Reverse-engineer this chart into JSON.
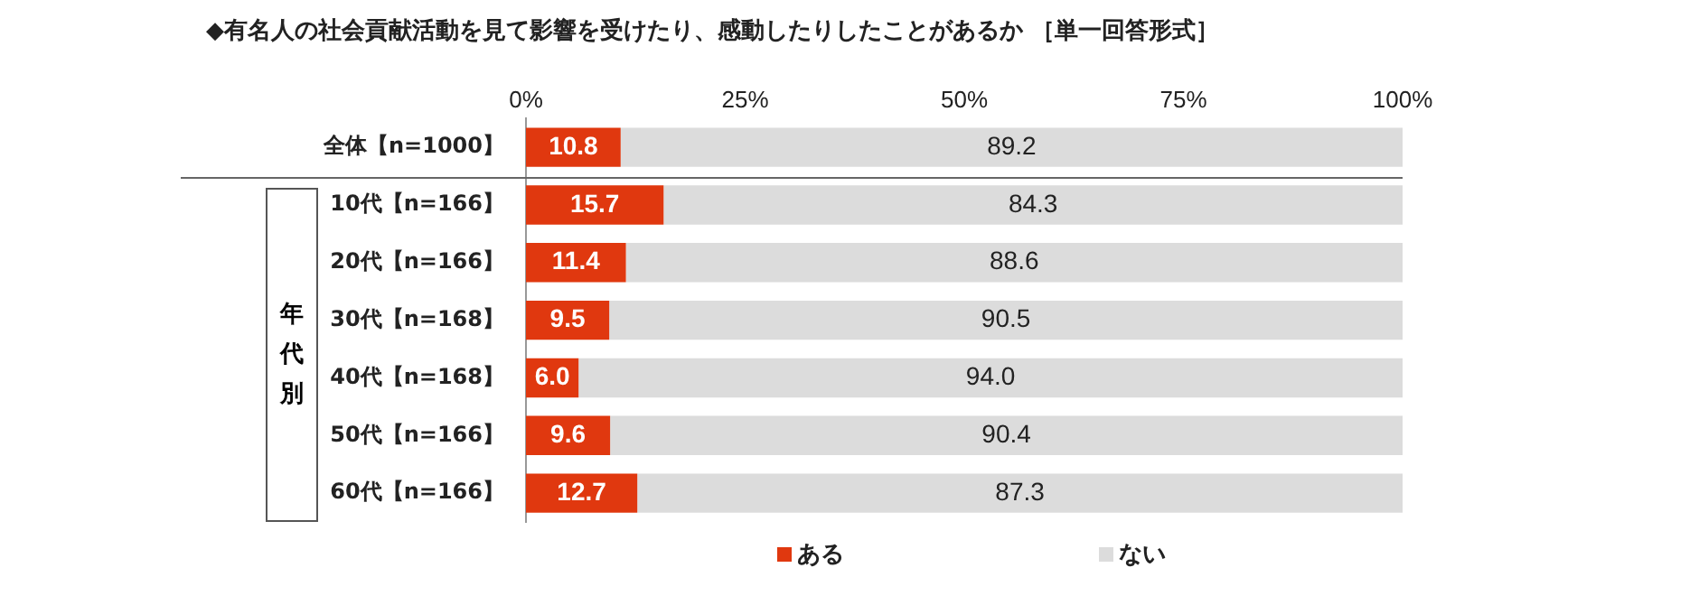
{
  "chart_data": {
    "type": "bar",
    "orientation": "horizontal",
    "stacked": true,
    "title": "◆有名人の社会貢献活動を見て影響を受けたり、感動したりしたことがあるか ［単一回答形式］",
    "categories": [
      "全体【n=1000】",
      "10代【n=166】",
      "20代【n=166】",
      "30代【n=168】",
      "40代【n=168】",
      "50代【n=166】",
      "60代【n=166】"
    ],
    "series": [
      {
        "name": "ある",
        "color": "#e0380f",
        "values": [
          10.8,
          15.7,
          11.4,
          9.5,
          6.0,
          9.6,
          12.7
        ],
        "value_labels": [
          "10.8",
          "15.7",
          "11.4",
          "9.5",
          "6.0",
          "9.6",
          "12.7"
        ]
      },
      {
        "name": "ない",
        "color": "#dcdcdc",
        "values": [
          89.2,
          84.3,
          88.6,
          90.5,
          94.0,
          90.4,
          87.3
        ],
        "value_labels": [
          "89.2",
          "84.3",
          "88.6",
          "90.5",
          "94.0",
          "90.4",
          "87.3"
        ]
      }
    ],
    "xlim": [
      0,
      100
    ],
    "xticks": [
      {
        "value": 0,
        "label": "0%"
      },
      {
        "value": 25,
        "label": "25%"
      },
      {
        "value": 50,
        "label": "50%"
      },
      {
        "value": 75,
        "label": "75%"
      },
      {
        "value": 100,
        "label": "100%"
      }
    ],
    "annotations": [
      "年代別"
    ],
    "data_labels": true,
    "grid": false,
    "legend": "bottom"
  }
}
